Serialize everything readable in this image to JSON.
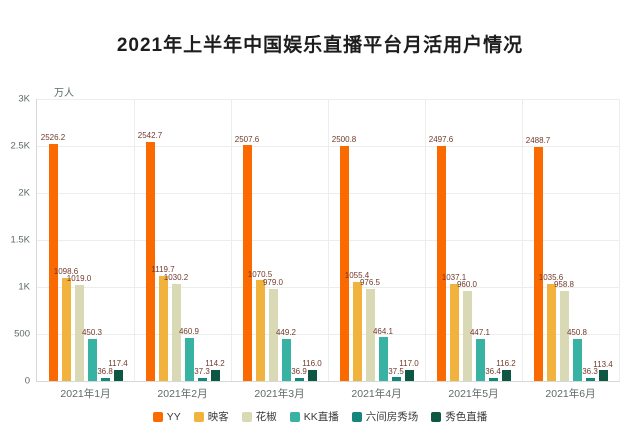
{
  "chart_data": {
    "type": "bar",
    "title": "2021年上半年中国娱乐直播平台月活用户情况",
    "unit_label": "万人",
    "categories": [
      "2021年1月",
      "2021年2月",
      "2021年3月",
      "2021年4月",
      "2021年5月",
      "2021年6月"
    ],
    "series": [
      {
        "name": "YY",
        "color": "#fb6a00",
        "values": [
          2526.2,
          2542.7,
          2507.6,
          2500.8,
          2497.6,
          2488.7
        ]
      },
      {
        "name": "映客",
        "color": "#f2b23e",
        "values": [
          1098.6,
          1119.7,
          1070.5,
          1055.4,
          1037.1,
          1035.6
        ]
      },
      {
        "name": "花椒",
        "color": "#d9d9b6",
        "values": [
          1019.0,
          1030.2,
          979.0,
          976.5,
          960.0,
          958.8
        ]
      },
      {
        "name": "KK直播",
        "color": "#38b2a2",
        "values": [
          450.3,
          460.9,
          449.2,
          464.1,
          447.1,
          450.8
        ]
      },
      {
        "name": "六间房秀场",
        "color": "#15867c",
        "values": [
          36.8,
          37.3,
          36.9,
          37.5,
          36.4,
          36.3
        ]
      },
      {
        "name": "秀色直播",
        "color": "#0d5743",
        "values": [
          117.4,
          114.2,
          116.0,
          117.0,
          116.2,
          113.4
        ]
      }
    ],
    "ylim": [
      0,
      3000
    ],
    "yticks": [
      {
        "v": 0,
        "label": "0"
      },
      {
        "v": 500,
        "label": "500"
      },
      {
        "v": 1000,
        "label": "1K"
      },
      {
        "v": 1500,
        "label": "1.5K"
      },
      {
        "v": 2000,
        "label": "2K"
      },
      {
        "v": 2500,
        "label": "2.5K"
      },
      {
        "v": 3000,
        "label": "3K"
      }
    ],
    "grid": true,
    "legend_position": "bottom"
  }
}
